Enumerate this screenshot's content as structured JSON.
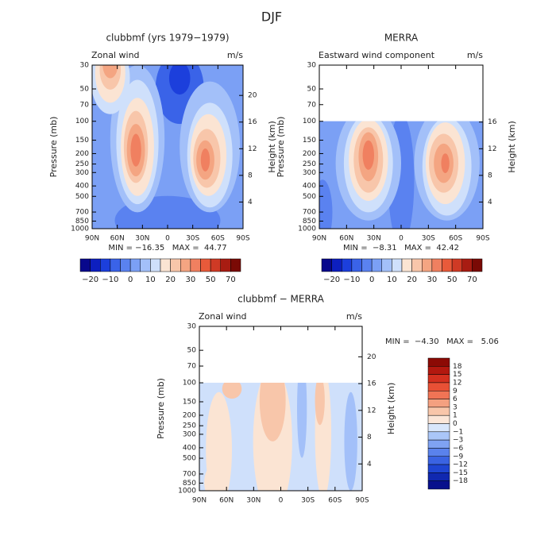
{
  "figure_title": "DJF",
  "chart_data": [
    {
      "type": "contour",
      "title": "clubbmf (yrs 1979−1979)",
      "subtitle": "Zonal wind",
      "units": "m/s",
      "ylabel": "Pressure (mb)",
      "y2label": "Height (km)",
      "log_y": true,
      "ylim": [
        1000,
        30
      ],
      "yticks": [
        30,
        50,
        70,
        100,
        150,
        200,
        250,
        300,
        400,
        500,
        700,
        850,
        1000
      ],
      "y2lim": [
        0,
        24.55
      ],
      "y2ticks": [
        4,
        8,
        12,
        16,
        20
      ],
      "xlim": [
        90,
        -90
      ],
      "xticks": [
        {
          "value": 90,
          "label": "90N"
        },
        {
          "value": 60,
          "label": "60N"
        },
        {
          "value": 30,
          "label": "30N"
        },
        0,
        {
          "value": -30,
          "label": "30S"
        },
        {
          "value": -60,
          "label": "60S"
        },
        {
          "value": -90,
          "label": "90S"
        }
      ],
      "stats": "MIN = −16.35   MAX =  44.77",
      "colorbar": {
        "orientation": "horizontal",
        "labels": [
          "−20",
          "−10",
          "0",
          "10",
          "20",
          "30",
          "50",
          "70"
        ],
        "colors": [
          "#08088c",
          "#0d1fbf",
          "#1c3fdc",
          "#3a63e8",
          "#5a82f0",
          "#7ba0f5",
          "#a3c0f9",
          "#cfe0fb",
          "#fbe4d3",
          "#f8c6aa",
          "#f4a582",
          "#f08060",
          "#e85a3a",
          "#cf3a25",
          "#a81c12",
          "#7a0a05"
        ]
      }
    },
    {
      "type": "contour",
      "title": "MERRA",
      "subtitle": "Eastward wind component",
      "units": "m/s",
      "ylabel": "Pressure (mb)",
      "y2label": "Height (km)",
      "log_y": true,
      "ylim": [
        1000,
        30
      ],
      "yticks": [
        30,
        50,
        70,
        100,
        150,
        200,
        250,
        300,
        400,
        500,
        700,
        850,
        1000
      ],
      "y2lim": [
        0,
        24.55
      ],
      "y2ticks": [
        4,
        8,
        12,
        16
      ],
      "xlim": [
        90,
        -90
      ],
      "xticks": [
        {
          "value": 90,
          "label": "90N"
        },
        {
          "value": 60,
          "label": "60N"
        },
        {
          "value": 30,
          "label": "30N"
        },
        0,
        {
          "value": -30,
          "label": "30S"
        },
        {
          "value": -60,
          "label": "60S"
        },
        {
          "value": -90,
          "label": "90S"
        }
      ],
      "stats": "MIN =  −8.31   MAX =  42.42",
      "colorbar": {
        "orientation": "horizontal",
        "labels": [
          "−20",
          "−10",
          "0",
          "10",
          "20",
          "30",
          "50",
          "70"
        ],
        "colors": [
          "#08088c",
          "#0d1fbf",
          "#1c3fdc",
          "#3a63e8",
          "#5a82f0",
          "#7ba0f5",
          "#a3c0f9",
          "#cfe0fb",
          "#fbe4d3",
          "#f8c6aa",
          "#f4a582",
          "#f08060",
          "#e85a3a",
          "#cf3a25",
          "#a81c12",
          "#7a0a05"
        ]
      }
    },
    {
      "type": "contour",
      "title": "clubbmf − MERRA",
      "subtitle": "Zonal wind",
      "units": "m/s",
      "ylabel": "Pressure (mb)",
      "y2label": "Height (km)",
      "log_y": true,
      "ylim": [
        1000,
        30
      ],
      "yticks": [
        30,
        50,
        70,
        100,
        150,
        200,
        250,
        300,
        400,
        500,
        700,
        850,
        1000
      ],
      "y2lim": [
        0,
        24.55
      ],
      "y2ticks": [
        4,
        8,
        12,
        16,
        20
      ],
      "xlim": [
        90,
        -90
      ],
      "xticks": [
        {
          "value": 90,
          "label": "90N"
        },
        {
          "value": 60,
          "label": "60N"
        },
        {
          "value": 30,
          "label": "30N"
        },
        0,
        {
          "value": -30,
          "label": "30S"
        },
        {
          "value": -60,
          "label": "60S"
        },
        {
          "value": -90,
          "label": "90S"
        }
      ],
      "stats": "MIN =  −4.30   MAX =   5.06",
      "colorbar": {
        "orientation": "vertical",
        "labels": [
          "18",
          "15",
          "12",
          "9",
          "6",
          "3",
          "1",
          "0",
          "−1",
          "−3",
          "−6",
          "−9",
          "−12",
          "−15",
          "−18"
        ],
        "colors": [
          "#8c0a05",
          "#b3180f",
          "#d4301f",
          "#e85035",
          "#f07455",
          "#f4a080",
          "#f8c6aa",
          "#fbe6d8",
          "#d8e6fb",
          "#aac6f8",
          "#7fa2f2",
          "#5a82ec",
          "#3a63e2",
          "#1f45d2",
          "#1028b0",
          "#08108c"
        ]
      }
    }
  ]
}
